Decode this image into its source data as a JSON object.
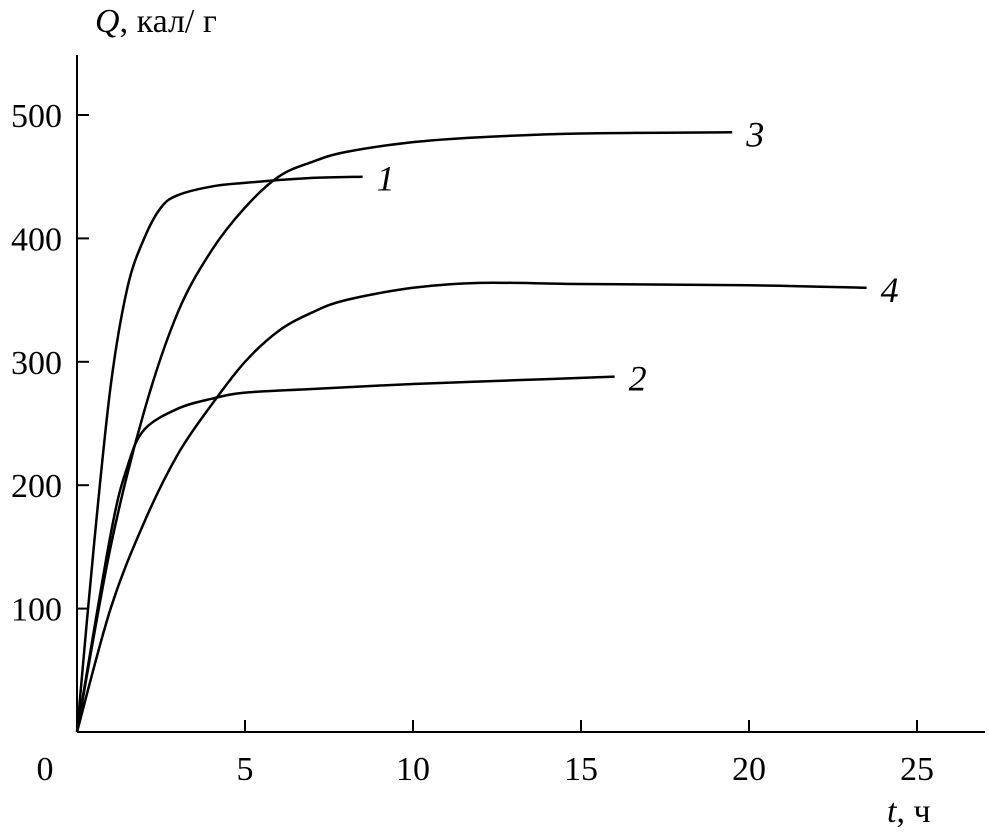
{
  "chart_data": {
    "type": "line",
    "title": "",
    "ylabel_var": "Q",
    "ylabel_unit": ", кал/ г",
    "xlabel_var": "t",
    "xlabel_unit": ", ч",
    "xlim": [
      0,
      27
    ],
    "ylim": [
      0,
      550
    ],
    "xticks": [
      0,
      5,
      10,
      15,
      20,
      25
    ],
    "yticks": [
      100,
      200,
      300,
      400,
      500
    ],
    "grid": false,
    "line_color": "#000000",
    "series": [
      {
        "name": "1",
        "x": [
          0,
          0.5,
          1,
          1.5,
          2,
          2.5,
          3,
          4,
          5,
          7,
          8.5
        ],
        "y": [
          0,
          150,
          280,
          360,
          400,
          425,
          435,
          442,
          445,
          449,
          450
        ]
      },
      {
        "name": "2",
        "x": [
          0,
          1,
          1.5,
          2,
          3,
          4,
          5,
          7,
          10,
          13,
          16
        ],
        "y": [
          0,
          160,
          215,
          245,
          262,
          270,
          275,
          278,
          282,
          285,
          288
        ]
      },
      {
        "name": "3",
        "x": [
          0,
          1,
          2,
          3,
          4,
          5,
          6,
          7,
          8,
          10,
          12,
          15,
          19.5
        ],
        "y": [
          0,
          150,
          260,
          340,
          390,
          425,
          450,
          462,
          470,
          478,
          482,
          485,
          486
        ]
      },
      {
        "name": "4",
        "x": [
          0,
          1,
          2,
          3,
          4,
          5,
          6,
          7,
          8,
          10,
          12,
          15,
          20,
          23.5
        ],
        "y": [
          0,
          100,
          170,
          225,
          265,
          300,
          325,
          340,
          350,
          360,
          364,
          363,
          362,
          360
        ]
      }
    ]
  }
}
